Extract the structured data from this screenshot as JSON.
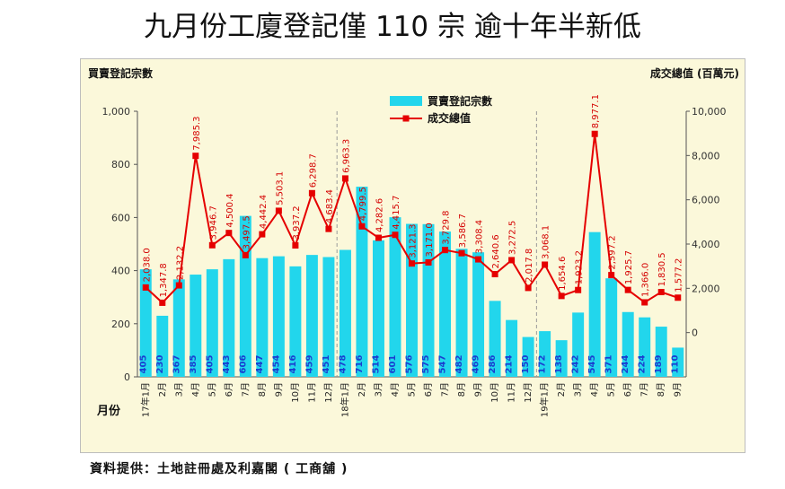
{
  "headline": "九月份工廈登記僅 110 宗 逾十年半新低",
  "source": "資料提供：土地註冊處及利嘉閣 ( 工商舖 )",
  "chart_data": {
    "type": "bar",
    "title": "九月份工廈登記僅 110 宗 逾十年半新低",
    "ylabel": "買賣登記宗數",
    "y2label": "成交總值 (百萬元)",
    "xlabel": "月份",
    "ylim": [
      0,
      1000
    ],
    "y2lim": [
      -2000,
      10000
    ],
    "yticks": [
      "0",
      "200",
      "400",
      "600",
      "800",
      "1,000"
    ],
    "y2ticks": [
      "0",
      "2,000",
      "4,000",
      "6,000",
      "8,000",
      "10,000"
    ],
    "legend_position": "top-center",
    "colors": {
      "bar": "#22d6ec",
      "bar_label": "#1a3fd0",
      "line": "#e50000",
      "line_label": "#d40000"
    },
    "categories": [
      "17年1月",
      "2月",
      "3月",
      "4月",
      "5月",
      "6月",
      "7月",
      "8月",
      "9月",
      "10月",
      "11月",
      "12月",
      "18年1月",
      "2月",
      "3月",
      "4月",
      "5月",
      "6月",
      "7月",
      "8月",
      "9月",
      "10月",
      "11月",
      "12月",
      "19年1月",
      "2月",
      "3月",
      "4月",
      "5月",
      "6月",
      "7月",
      "8月",
      "9月"
    ],
    "series": [
      {
        "name": "買賣登記宗數",
        "type": "bar",
        "axis": "left",
        "values": [
          405,
          230,
          367,
          385,
          405,
          443,
          606,
          447,
          454,
          416,
          459,
          451,
          478,
          716,
          514,
          601,
          576,
          575,
          547,
          482,
          469,
          286,
          214,
          150,
          172,
          138,
          242,
          545,
          371,
          244,
          224,
          189,
          110
        ],
        "labels": [
          "405",
          "230",
          "367",
          "385",
          "405",
          "443",
          "606",
          "447",
          "454",
          "416",
          "459",
          "451",
          "478",
          "716",
          "514",
          "601",
          "576",
          "575",
          "547",
          "482",
          "469",
          "286",
          "214",
          "150",
          "172",
          "138",
          "242",
          "545",
          "371",
          "244",
          "224",
          "189",
          "110"
        ]
      },
      {
        "name": "成交總值",
        "type": "line",
        "axis": "right",
        "values": [
          2038.0,
          1347.8,
          2132.2,
          7985.3,
          3946.7,
          4500.4,
          3497.5,
          4442.4,
          5503.1,
          3937.2,
          6298.7,
          4683.4,
          6963.3,
          4799.5,
          4282.6,
          4415.7,
          3121.3,
          3171.0,
          3729.8,
          3586.7,
          3308.4,
          2640.6,
          3272.5,
          2017.8,
          3068.1,
          1654.6,
          1923.2,
          8977.1,
          2597.2,
          1925.7,
          1366.0,
          1830.5,
          1577.2
        ],
        "labels": [
          "2,038.0",
          "1,347.8",
          "2,132.2",
          "7,985.3",
          "3,946.7",
          "4,500.4",
          "3,497.5",
          "4,442.4",
          "5,503.1",
          "3,937.2",
          "6,298.7",
          "4,683.4",
          "6,963.3",
          "4,799.5",
          "4,282.6",
          "4,415.7",
          "3,121.3",
          "3,171.0",
          "3,729.8",
          "3,586.7",
          "3,308.4",
          "2,640.6",
          "3,272.5",
          "2,017.8",
          "3,068.1",
          "1,654.6",
          "1,923.2",
          "8,977.1",
          "2,597.2",
          "1,925.7",
          "1,366.0",
          "1,830.5",
          "1,577.2"
        ]
      }
    ]
  }
}
